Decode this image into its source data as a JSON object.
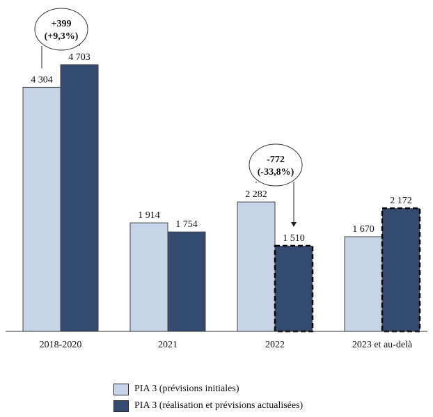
{
  "chart_data": {
    "type": "bar",
    "categories": [
      "2018-2020",
      "2021",
      "2022",
      "2023 et au-delà"
    ],
    "series": [
      {
        "name": "PIA 3 (prévisions initiales)",
        "values": [
          4304,
          1914,
          2282,
          1670
        ],
        "labels": [
          "4 304",
          "1 914",
          "2 282",
          "1 670"
        ],
        "color": "#c7d3e6"
      },
      {
        "name": "PIA 3 (réalisation et prévisions actualisées)",
        "values": [
          4703,
          1754,
          1510,
          2172
        ],
        "labels": [
          "4 703",
          "1 754",
          "1 510",
          "2 172"
        ],
        "color": "#354a6f",
        "dashed_border": [
          false,
          false,
          true,
          true
        ]
      }
    ],
    "ylim": [
      0,
      5500
    ],
    "grid": false,
    "legend_position": "bottom",
    "annotations": [
      {
        "category_index": 0,
        "line1": "+399",
        "line2": "(+9,3%)"
      },
      {
        "category_index": 2,
        "line1": "-772",
        "line2": "(-33,8%)"
      }
    ]
  }
}
